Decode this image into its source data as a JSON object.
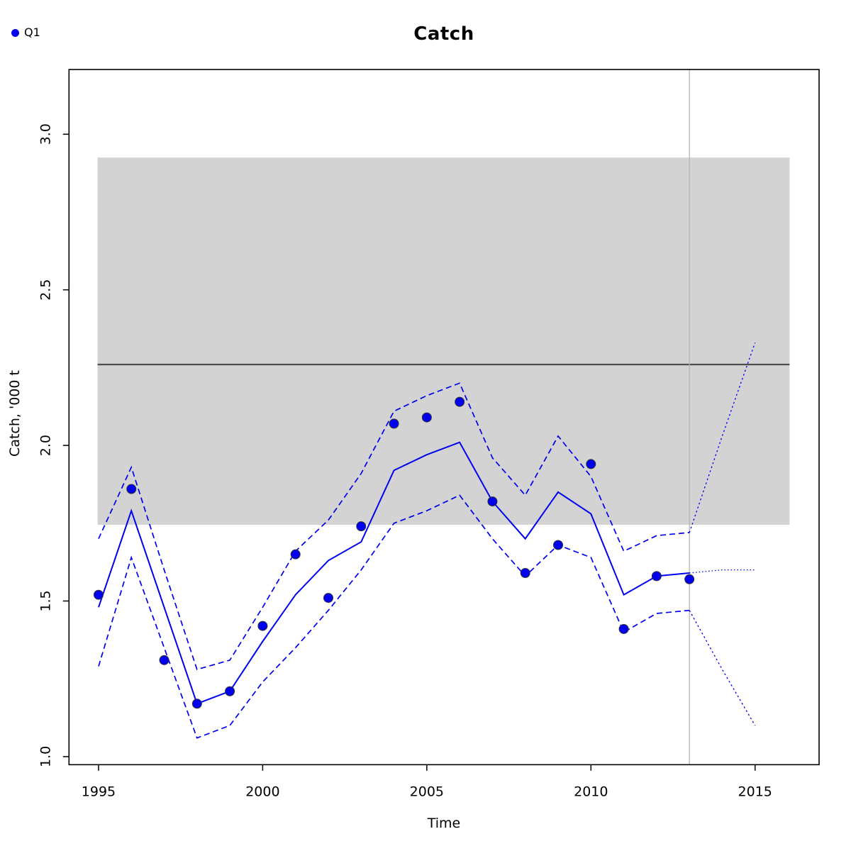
{
  "title": "Catch",
  "legend": {
    "label": "Q1",
    "color": "#0000EE"
  },
  "chart_data": {
    "type": "line",
    "title": "Catch",
    "xlabel": "Time",
    "ylabel": "Catch, '000 t",
    "xlim": [
      1994.1,
      2016.95
    ],
    "ylim": [
      0.974,
      3.208
    ],
    "grid": false,
    "x_ticks": [
      "1995",
      "2000",
      "2005",
      "2010",
      "2015"
    ],
    "y_ticks": [
      "1.0",
      "1.5",
      "2.0",
      "2.5",
      "3.0"
    ],
    "reference_band": {
      "x_from": 1994.97,
      "x_to": 2016.05,
      "y_from": 1.745,
      "y_to": 2.925,
      "color": "#D3D3D3"
    },
    "reference_line": {
      "value": 2.26,
      "color": "#4D4D4D"
    },
    "vertical_line": {
      "x": 2013,
      "color": "#B3B3B3"
    },
    "line_color": "#0000EE",
    "x": [
      1995,
      1996,
      1997,
      1998,
      1999,
      2000,
      2001,
      2002,
      2003,
      2004,
      2005,
      2006,
      2007,
      2008,
      2009,
      2010,
      2011,
      2012,
      2013
    ],
    "series": [
      {
        "name": "observed",
        "style": "points",
        "values": [
          1.52,
          1.86,
          1.31,
          1.17,
          1.21,
          1.42,
          1.65,
          1.51,
          1.74,
          2.07,
          2.09,
          2.14,
          1.82,
          1.59,
          1.68,
          1.94,
          1.41,
          1.58,
          1.57
        ]
      },
      {
        "name": "fitted",
        "style": "solid",
        "values": [
          1.48,
          1.79,
          1.48,
          1.17,
          1.21,
          1.37,
          1.52,
          1.63,
          1.69,
          1.92,
          1.97,
          2.01,
          1.82,
          1.7,
          1.85,
          1.78,
          1.52,
          1.58,
          1.59
        ]
      },
      {
        "name": "ci-upper",
        "style": "dashed",
        "values": [
          1.7,
          1.93,
          1.6,
          1.28,
          1.31,
          1.48,
          1.66,
          1.76,
          1.91,
          2.11,
          2.16,
          2.2,
          1.96,
          1.84,
          2.03,
          1.9,
          1.66,
          1.71,
          1.72
        ]
      },
      {
        "name": "ci-lower",
        "style": "dashed",
        "values": [
          1.29,
          1.64,
          1.35,
          1.06,
          1.1,
          1.24,
          1.35,
          1.47,
          1.6,
          1.75,
          1.79,
          1.84,
          1.7,
          1.58,
          1.68,
          1.64,
          1.4,
          1.46,
          1.47
        ]
      }
    ],
    "projections": [
      {
        "name": "proj-median",
        "style": "dotted-fine",
        "x": [
          2013,
          2014,
          2015
        ],
        "values": [
          1.59,
          1.6,
          1.6
        ]
      },
      {
        "name": "proj-upper",
        "style": "dotted",
        "x": [
          2013,
          2014,
          2015
        ],
        "values": [
          1.72,
          2.03,
          2.33
        ]
      },
      {
        "name": "proj-lower",
        "style": "dotted",
        "x": [
          2013,
          2014,
          2015
        ],
        "values": [
          1.47,
          1.28,
          1.1
        ]
      }
    ]
  }
}
